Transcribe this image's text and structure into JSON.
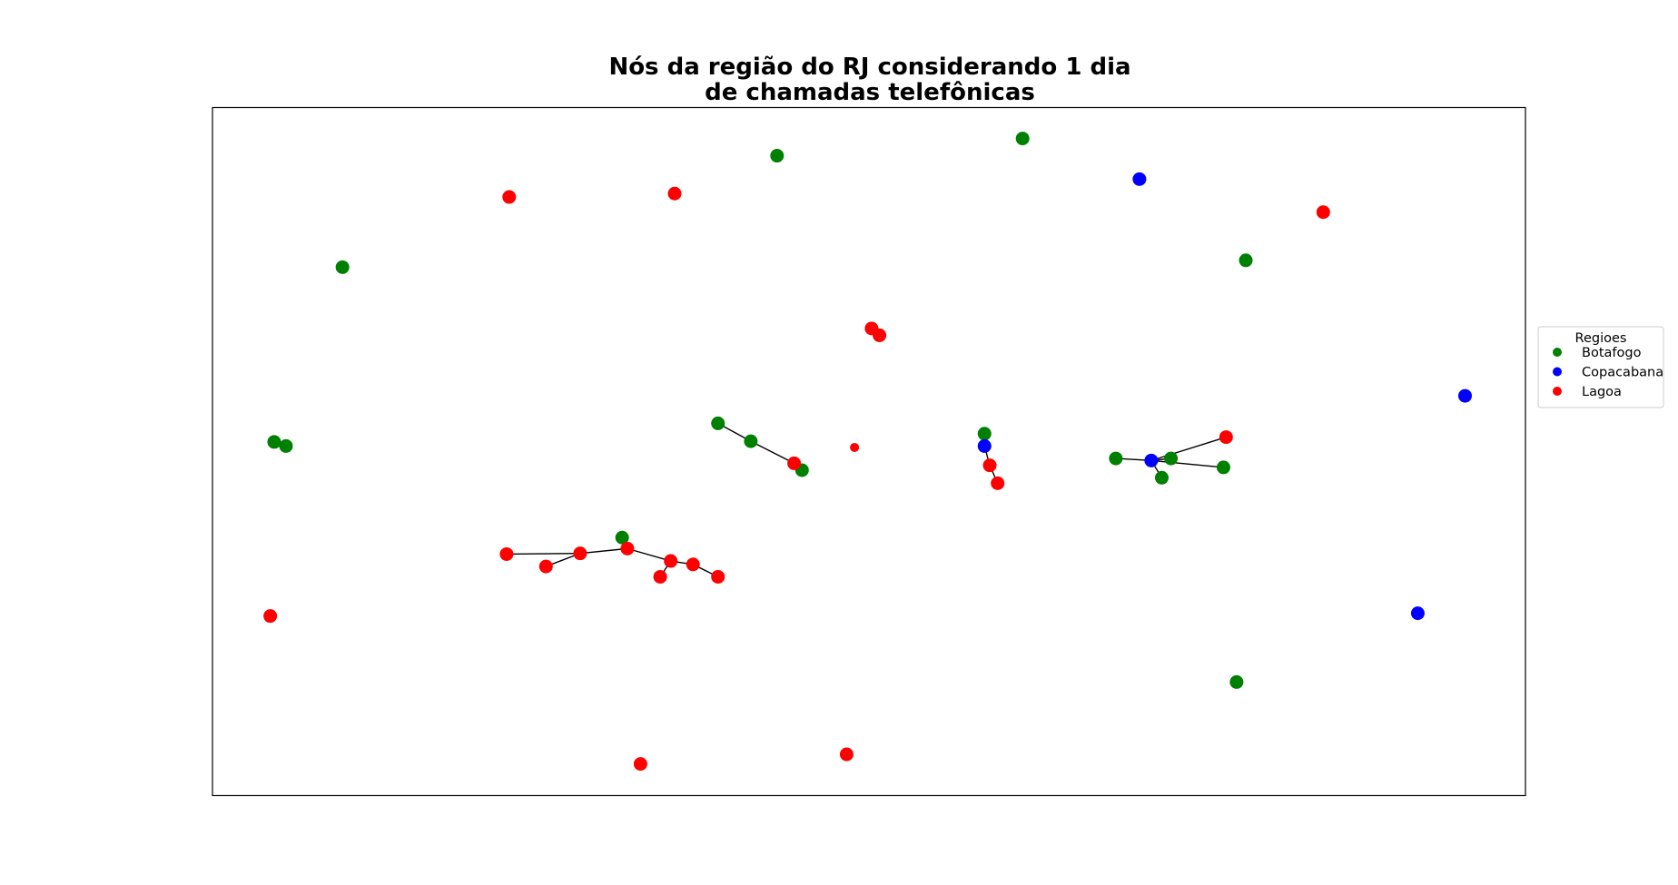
{
  "chart_data": {
    "type": "scatter",
    "subtype": "network-graph",
    "title": [
      "Nós da região do RJ considerando 1 dia",
      "de chamadas telefônicas"
    ],
    "xlabel": "",
    "ylabel": "",
    "axes_visible": false,
    "xlim": [
      0,
      100
    ],
    "ylim": [
      0,
      100
    ],
    "grid": false,
    "legend": {
      "title": "Regioes",
      "placement": "right (outside plot area)",
      "entries": [
        {
          "label": "Botafogo",
          "color": "#008000"
        },
        {
          "label": "Copacabana",
          "color": "#0000ff"
        },
        {
          "label": "Lagoa",
          "color": "#ff0000"
        }
      ]
    },
    "series": [
      {
        "name": "Botafogo",
        "color": "#008000",
        "points": [
          {
            "id": "b1",
            "x": 43.0,
            "y": 93.0
          },
          {
            "id": "b2",
            "x": 61.7,
            "y": 95.5
          },
          {
            "id": "b3",
            "x": 9.9,
            "y": 76.8
          },
          {
            "id": "b4",
            "x": 78.7,
            "y": 77.8
          },
          {
            "id": "b5",
            "x": 4.7,
            "y": 51.4
          },
          {
            "id": "b6",
            "x": 5.6,
            "y": 50.8
          },
          {
            "id": "b7",
            "x": 38.5,
            "y": 54.1
          },
          {
            "id": "b8",
            "x": 41.0,
            "y": 51.5
          },
          {
            "id": "b9",
            "x": 44.9,
            "y": 47.3
          },
          {
            "id": "b10",
            "x": 58.8,
            "y": 52.6
          },
          {
            "id": "b11",
            "x": 68.8,
            "y": 49.0
          },
          {
            "id": "b12",
            "x": 73.0,
            "y": 49.0
          },
          {
            "id": "b13",
            "x": 72.3,
            "y": 46.2
          },
          {
            "id": "b14",
            "x": 77.0,
            "y": 47.7
          },
          {
            "id": "b15",
            "x": 31.2,
            "y": 37.5
          },
          {
            "id": "b16",
            "x": 78.0,
            "y": 16.5
          }
        ]
      },
      {
        "name": "Copacabana",
        "color": "#0000ff",
        "points": [
          {
            "id": "c1",
            "x": 70.6,
            "y": 89.6
          },
          {
            "id": "c2",
            "x": 95.4,
            "y": 58.1
          },
          {
            "id": "c3",
            "x": 58.8,
            "y": 50.8
          },
          {
            "id": "c4",
            "x": 71.5,
            "y": 48.7
          },
          {
            "id": "c5",
            "x": 91.8,
            "y": 26.5
          }
        ]
      },
      {
        "name": "Lagoa",
        "color": "#ff0000",
        "points": [
          {
            "id": "l1",
            "x": 22.6,
            "y": 87.0
          },
          {
            "id": "l2",
            "x": 35.2,
            "y": 87.5
          },
          {
            "id": "l3",
            "x": 84.6,
            "y": 84.8
          },
          {
            "id": "l4",
            "x": 50.2,
            "y": 67.9
          },
          {
            "id": "l5",
            "x": 50.8,
            "y": 66.9
          },
          {
            "id": "l6",
            "x": 48.9,
            "y": 50.6,
            "small": true
          },
          {
            "id": "l7",
            "x": 44.3,
            "y": 48.3
          },
          {
            "id": "l8",
            "x": 59.2,
            "y": 48.0
          },
          {
            "id": "l9",
            "x": 59.8,
            "y": 45.4
          },
          {
            "id": "l10",
            "x": 77.2,
            "y": 52.1
          },
          {
            "id": "l11",
            "x": 22.4,
            "y": 35.1
          },
          {
            "id": "l12",
            "x": 25.4,
            "y": 33.3
          },
          {
            "id": "l13",
            "x": 28.0,
            "y": 35.2
          },
          {
            "id": "l14",
            "x": 31.6,
            "y": 35.9
          },
          {
            "id": "l15",
            "x": 34.9,
            "y": 34.1
          },
          {
            "id": "l16",
            "x": 34.1,
            "y": 31.8
          },
          {
            "id": "l17",
            "x": 36.6,
            "y": 33.6
          },
          {
            "id": "l18",
            "x": 38.5,
            "y": 31.8
          },
          {
            "id": "l19",
            "x": 4.4,
            "y": 26.1
          },
          {
            "id": "l20",
            "x": 48.3,
            "y": 6.0
          },
          {
            "id": "l21",
            "x": 32.6,
            "y": 4.6
          }
        ]
      }
    ],
    "edges": [
      [
        "b7",
        "b8"
      ],
      [
        "b8",
        "l7"
      ],
      [
        "l7",
        "b9"
      ],
      [
        "b10",
        "c3"
      ],
      [
        "c3",
        "l8"
      ],
      [
        "l8",
        "l9"
      ],
      [
        "c4",
        "l10"
      ],
      [
        "c4",
        "b11"
      ],
      [
        "c4",
        "b12"
      ],
      [
        "c4",
        "b13"
      ],
      [
        "c4",
        "b14"
      ],
      [
        "l11",
        "l13"
      ],
      [
        "l12",
        "l13"
      ],
      [
        "l13",
        "l14"
      ],
      [
        "l14",
        "b15"
      ],
      [
        "l14",
        "l15"
      ],
      [
        "l15",
        "l16"
      ],
      [
        "l15",
        "l17"
      ],
      [
        "l17",
        "l18"
      ]
    ]
  }
}
